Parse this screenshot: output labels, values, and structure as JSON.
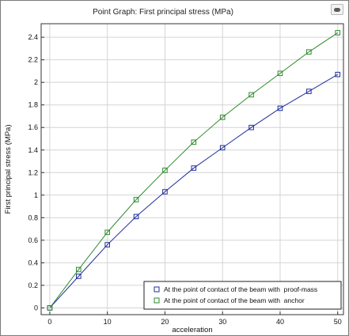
{
  "window": {
    "title": "Point Graph: First principal stress (MPa)",
    "corner_icon": "sync-view-icon"
  },
  "chart_data": {
    "type": "line",
    "title": "Point Graph: First principal stress (MPa)",
    "xlabel": "acceleration",
    "ylabel": "First principal stress (MPa)",
    "xlim": [
      -1.5,
      51
    ],
    "ylim": [
      -0.06,
      2.52
    ],
    "xticks": [
      0,
      10,
      20,
      30,
      40,
      50
    ],
    "yticks": [
      0,
      0.2,
      0.4,
      0.6,
      0.8,
      1,
      1.2,
      1.4,
      1.6,
      1.8,
      2,
      2.2,
      2.4
    ],
    "grid": true,
    "legend_position": "bottom-right",
    "x": [
      0,
      5,
      10,
      15,
      20,
      25,
      30,
      35,
      40,
      45,
      50
    ],
    "series": [
      {
        "name": "At the point of contact of the beam with  proof-mass",
        "color": "#1f2f9e",
        "marker": "square",
        "values": [
          0,
          0.28,
          0.56,
          0.81,
          1.03,
          1.24,
          1.42,
          1.6,
          1.77,
          1.92,
          2.07
        ]
      },
      {
        "name": "At the point of contact of the beam with  anchor",
        "color": "#2e8b2e",
        "marker": "square",
        "values": [
          0,
          0.34,
          0.67,
          0.96,
          1.22,
          1.47,
          1.69,
          1.89,
          2.08,
          2.27,
          2.44
        ]
      }
    ]
  }
}
